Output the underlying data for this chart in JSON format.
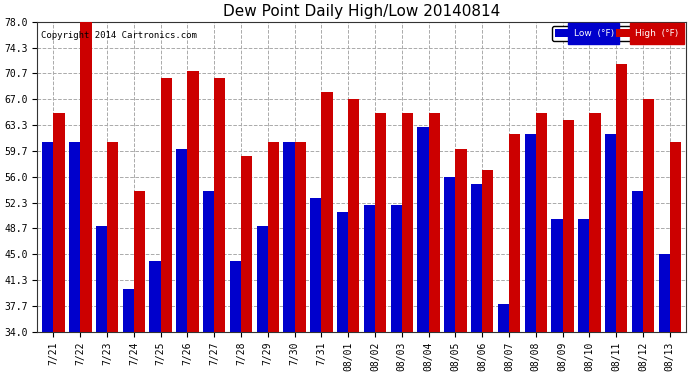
{
  "title": "Dew Point Daily High/Low 20140814",
  "copyright": "Copyright 2014 Cartronics.com",
  "dates": [
    "7/21",
    "7/22",
    "7/23",
    "7/24",
    "7/25",
    "7/26",
    "7/27",
    "7/28",
    "7/29",
    "7/30",
    "7/31",
    "08/01",
    "08/02",
    "08/03",
    "08/04",
    "08/05",
    "08/06",
    "08/07",
    "08/08",
    "08/09",
    "08/10",
    "08/11",
    "08/12",
    "08/13"
  ],
  "low_values": [
    61,
    61,
    49,
    40,
    44,
    60,
    54,
    44,
    49,
    61,
    53,
    51,
    52,
    52,
    63,
    56,
    55,
    38,
    62,
    50,
    50,
    62,
    54,
    45
  ],
  "high_values": [
    65,
    78,
    61,
    54,
    70,
    71,
    70,
    59,
    61,
    61,
    68,
    67,
    65,
    65,
    65,
    60,
    57,
    62,
    65,
    64,
    65,
    72,
    67,
    61
  ],
  "y_ticks": [
    34.0,
    37.7,
    41.3,
    45.0,
    48.7,
    52.3,
    56.0,
    59.7,
    63.3,
    67.0,
    70.7,
    74.3,
    78.0
  ],
  "ylim_min": 34.0,
  "ylim_max": 78.0,
  "low_color": "#0000cc",
  "high_color": "#cc0000",
  "bg_color": "#ffffff",
  "grid_color": "#aaaaaa",
  "bar_width": 0.42,
  "title_fontsize": 11,
  "tick_fontsize": 7,
  "copyright_fontsize": 6.5
}
